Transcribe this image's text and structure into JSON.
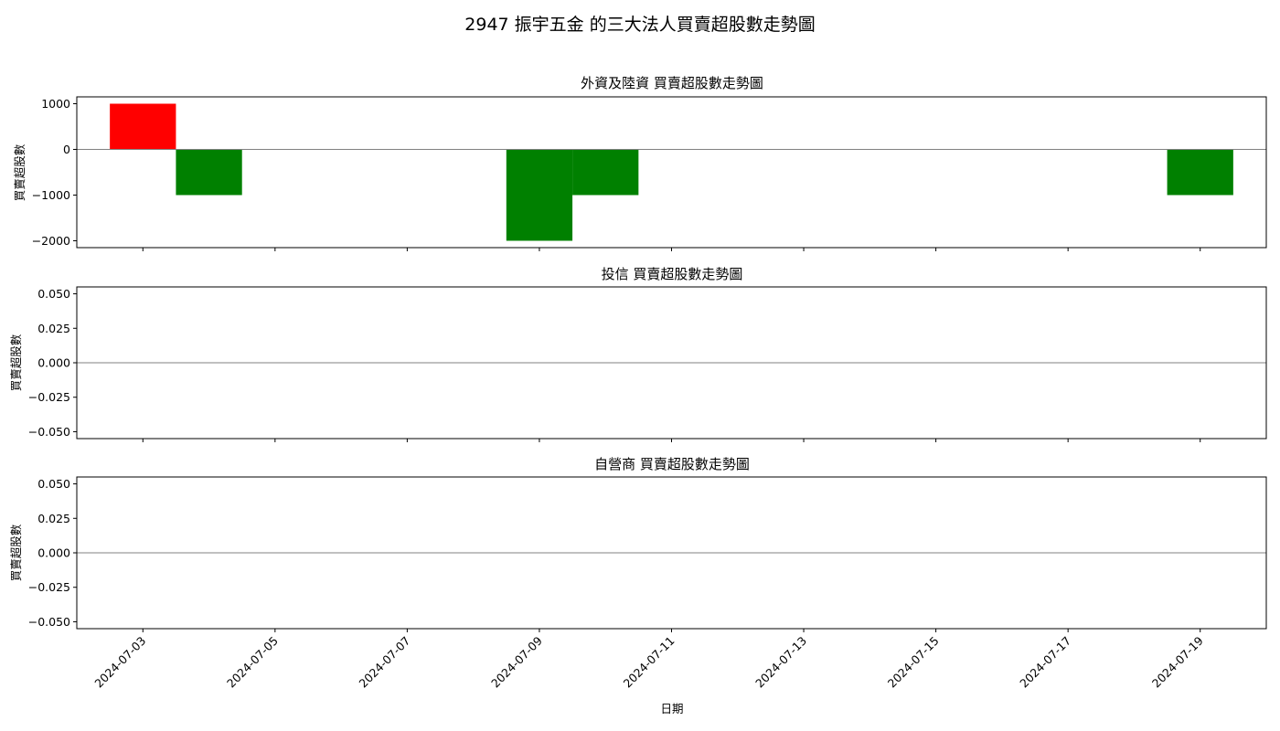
{
  "chart_data": {
    "title": "2947 振宇五金 的三大法人買賣超股數走勢圖",
    "xlabel": "日期",
    "type": "bar",
    "shared_x": true,
    "x_range": [
      "2024-07-02",
      "2024-07-20"
    ],
    "x_ticks": [
      "2024-07-03",
      "2024-07-05",
      "2024-07-07",
      "2024-07-09",
      "2024-07-11",
      "2024-07-13",
      "2024-07-15",
      "2024-07-17",
      "2024-07-19"
    ],
    "colors": {
      "positive": "#ff0000",
      "negative": "#008000",
      "zero_line": "#808080"
    },
    "subplots": [
      {
        "title": "外資及陸資 買賣超股數走勢圖",
        "ylabel": "買賣超股數",
        "ylim": [
          -2150,
          1150
        ],
        "y_ticks": [
          "1000",
          "0",
          "−1000",
          "−2000"
        ],
        "y_tick_values": [
          1000,
          0,
          -1000,
          -2000
        ],
        "bars": [
          {
            "date": "2024-07-03",
            "value": 1000
          },
          {
            "date": "2024-07-04",
            "value": -1000
          },
          {
            "date": "2024-07-09",
            "value": -2000
          },
          {
            "date": "2024-07-10",
            "value": -1000
          },
          {
            "date": "2024-07-19",
            "value": -1000
          }
        ]
      },
      {
        "title": "投信 買賣超股數走勢圖",
        "ylabel": "買賣超股數",
        "ylim": [
          -0.055,
          0.055
        ],
        "y_ticks": [
          "0.050",
          "0.025",
          "0.000",
          "−0.025",
          "−0.050"
        ],
        "y_tick_values": [
          0.05,
          0.025,
          0,
          -0.025,
          -0.05
        ],
        "bars": []
      },
      {
        "title": "自營商 買賣超股數走勢圖",
        "ylabel": "買賣超股數",
        "ylim": [
          -0.055,
          0.055
        ],
        "y_ticks": [
          "0.050",
          "0.025",
          "0.000",
          "−0.025",
          "−0.050"
        ],
        "y_tick_values": [
          0.05,
          0.025,
          0,
          -0.025,
          -0.05
        ],
        "bars": []
      }
    ]
  }
}
